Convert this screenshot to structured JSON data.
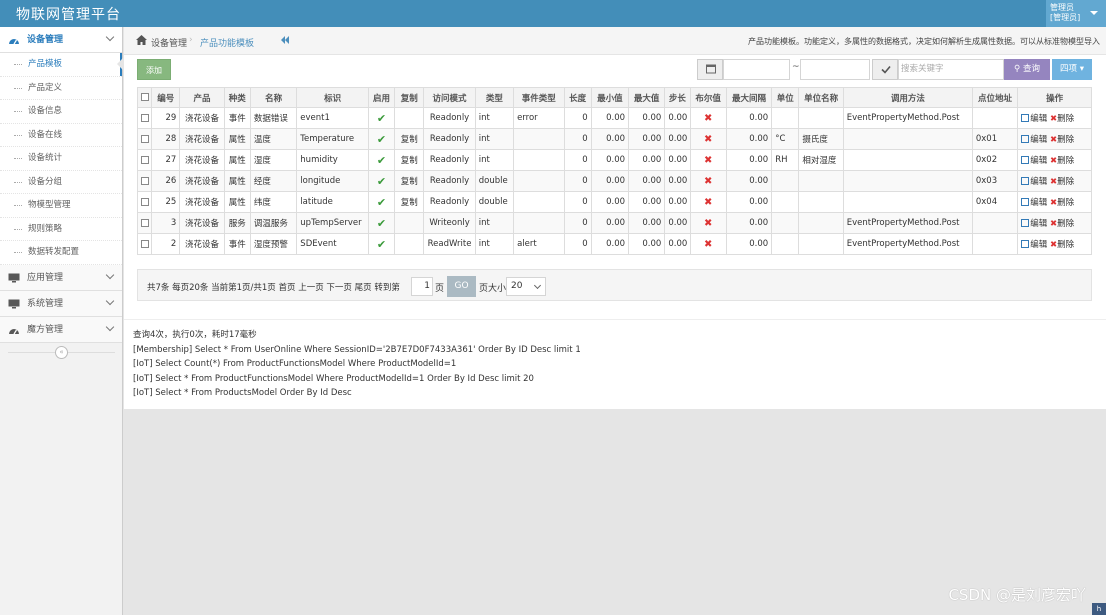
{
  "app": {
    "title": "物联网管理平台"
  },
  "user": {
    "line1": "管理员",
    "line2": "[管理员]"
  },
  "sidebar": {
    "groups": [
      {
        "label": "设备管理",
        "icon": "dashboard-icon"
      },
      {
        "label": "应用管理",
        "icon": "monitor-icon"
      },
      {
        "label": "系统管理",
        "icon": "monitor-icon"
      },
      {
        "label": "魔方管理",
        "icon": "dashboard-icon"
      }
    ],
    "items": [
      {
        "label": "产品模板"
      },
      {
        "label": "产品定义"
      },
      {
        "label": "设备信息"
      },
      {
        "label": "设备在线"
      },
      {
        "label": "设备统计"
      },
      {
        "label": "设备分组"
      },
      {
        "label": "物模型管理"
      },
      {
        "label": "规则策略"
      },
      {
        "label": "数据转发配置"
      }
    ]
  },
  "breadcrumb": {
    "level1": "设备管理",
    "level2": "产品功能模板"
  },
  "page_description": "产品功能模板。功能定义，多属性的数据格式，决定如何解析生成属性数据。可以从标准物模型导入",
  "toolbar": {
    "add_label": "添加",
    "date_sep": "~",
    "search_placeholder": "搜索关键字",
    "query_label": "查询",
    "export_label": "四项"
  },
  "table": {
    "columns": [
      "编号",
      "产品",
      "种类",
      "名称",
      "标识",
      "启用",
      "复制",
      "访问模式",
      "类型",
      "事件类型",
      "长度",
      "最小值",
      "最大值",
      "步长",
      "布尔值",
      "最大间隔",
      "单位",
      "单位名称",
      "调用方法",
      "点位地址",
      "操作"
    ],
    "rows": [
      {
        "id": "29",
        "product": "浇花设备",
        "kind": "事件",
        "name": "数据错误",
        "ident": "event1",
        "copy": "",
        "access": "Readonly",
        "type": "int",
        "event_type": "error",
        "length": "0",
        "min": "0.00",
        "max": "0.00",
        "step": "0.00",
        "interval": "0.00",
        "unit": "",
        "unit_name": "",
        "method": "EventPropertyMethod.Post",
        "address": ""
      },
      {
        "id": "28",
        "product": "浇花设备",
        "kind": "属性",
        "name": "温度",
        "ident": "Temperature",
        "copy": "复制",
        "access": "Readonly",
        "type": "int",
        "event_type": "",
        "length": "0",
        "min": "0.00",
        "max": "0.00",
        "step": "0.00",
        "interval": "0.00",
        "unit": "°C",
        "unit_name": "摄氏度",
        "method": "",
        "address": "0x01"
      },
      {
        "id": "27",
        "product": "浇花设备",
        "kind": "属性",
        "name": "湿度",
        "ident": "humidity",
        "copy": "复制",
        "access": "Readonly",
        "type": "int",
        "event_type": "",
        "length": "0",
        "min": "0.00",
        "max": "0.00",
        "step": "0.00",
        "interval": "0.00",
        "unit": "RH",
        "unit_name": "相对湿度",
        "method": "",
        "address": "0x02"
      },
      {
        "id": "26",
        "product": "浇花设备",
        "kind": "属性",
        "name": "经度",
        "ident": "longitude",
        "copy": "复制",
        "access": "Readonly",
        "type": "double",
        "event_type": "",
        "length": "0",
        "min": "0.00",
        "max": "0.00",
        "step": "0.00",
        "interval": "0.00",
        "unit": "",
        "unit_name": "",
        "method": "",
        "address": "0x03"
      },
      {
        "id": "25",
        "product": "浇花设备",
        "kind": "属性",
        "name": "纬度",
        "ident": "latitude",
        "copy": "复制",
        "access": "Readonly",
        "type": "double",
        "event_type": "",
        "length": "0",
        "min": "0.00",
        "max": "0.00",
        "step": "0.00",
        "interval": "0.00",
        "unit": "",
        "unit_name": "",
        "method": "",
        "address": "0x04"
      },
      {
        "id": "3",
        "product": "浇花设备",
        "kind": "服务",
        "name": "调温服务",
        "ident": "upTempServer",
        "copy": "",
        "access": "Writeonly",
        "type": "int",
        "event_type": "",
        "length": "0",
        "min": "0.00",
        "max": "0.00",
        "step": "0.00",
        "interval": "0.00",
        "unit": "",
        "unit_name": "",
        "method": "EventPropertyMethod.Post",
        "address": ""
      },
      {
        "id": "2",
        "product": "浇花设备",
        "kind": "事件",
        "name": "湿度预警",
        "ident": "SDEvent",
        "copy": "",
        "access": "ReadWrite",
        "type": "int",
        "event_type": "alert",
        "length": "0",
        "min": "0.00",
        "max": "0.00",
        "step": "0.00",
        "interval": "0.00",
        "unit": "",
        "unit_name": "",
        "method": "EventPropertyMethod.Post",
        "address": ""
      }
    ],
    "actions": {
      "edit": "编辑",
      "delete": "删除"
    }
  },
  "pager": {
    "summary": "共7条 每页20条 当前第1页/共1页 首页 上一页 下一页 尾页 转到第",
    "page_value": "1",
    "page_suffix": "页",
    "go_label": "GO",
    "size_label": "页大小",
    "size_value": "20"
  },
  "log": [
    "查询4次，执行0次，耗时17毫秒",
    "[Membership] Select * From UserOnline Where SessionID='2B7E7D0F7433A361' Order By ID Desc limit 1",
    "[IoT] Select Count(*) From ProductFunctionsModel Where ProductModelId=1",
    "[IoT] Select * From ProductFunctionsModel Where ProductModelId=1 Order By Id Desc limit 20",
    "[IoT] Select * From ProductsModel Order By Id Desc"
  ],
  "watermark": "CSDN @是刘彦宏吖"
}
